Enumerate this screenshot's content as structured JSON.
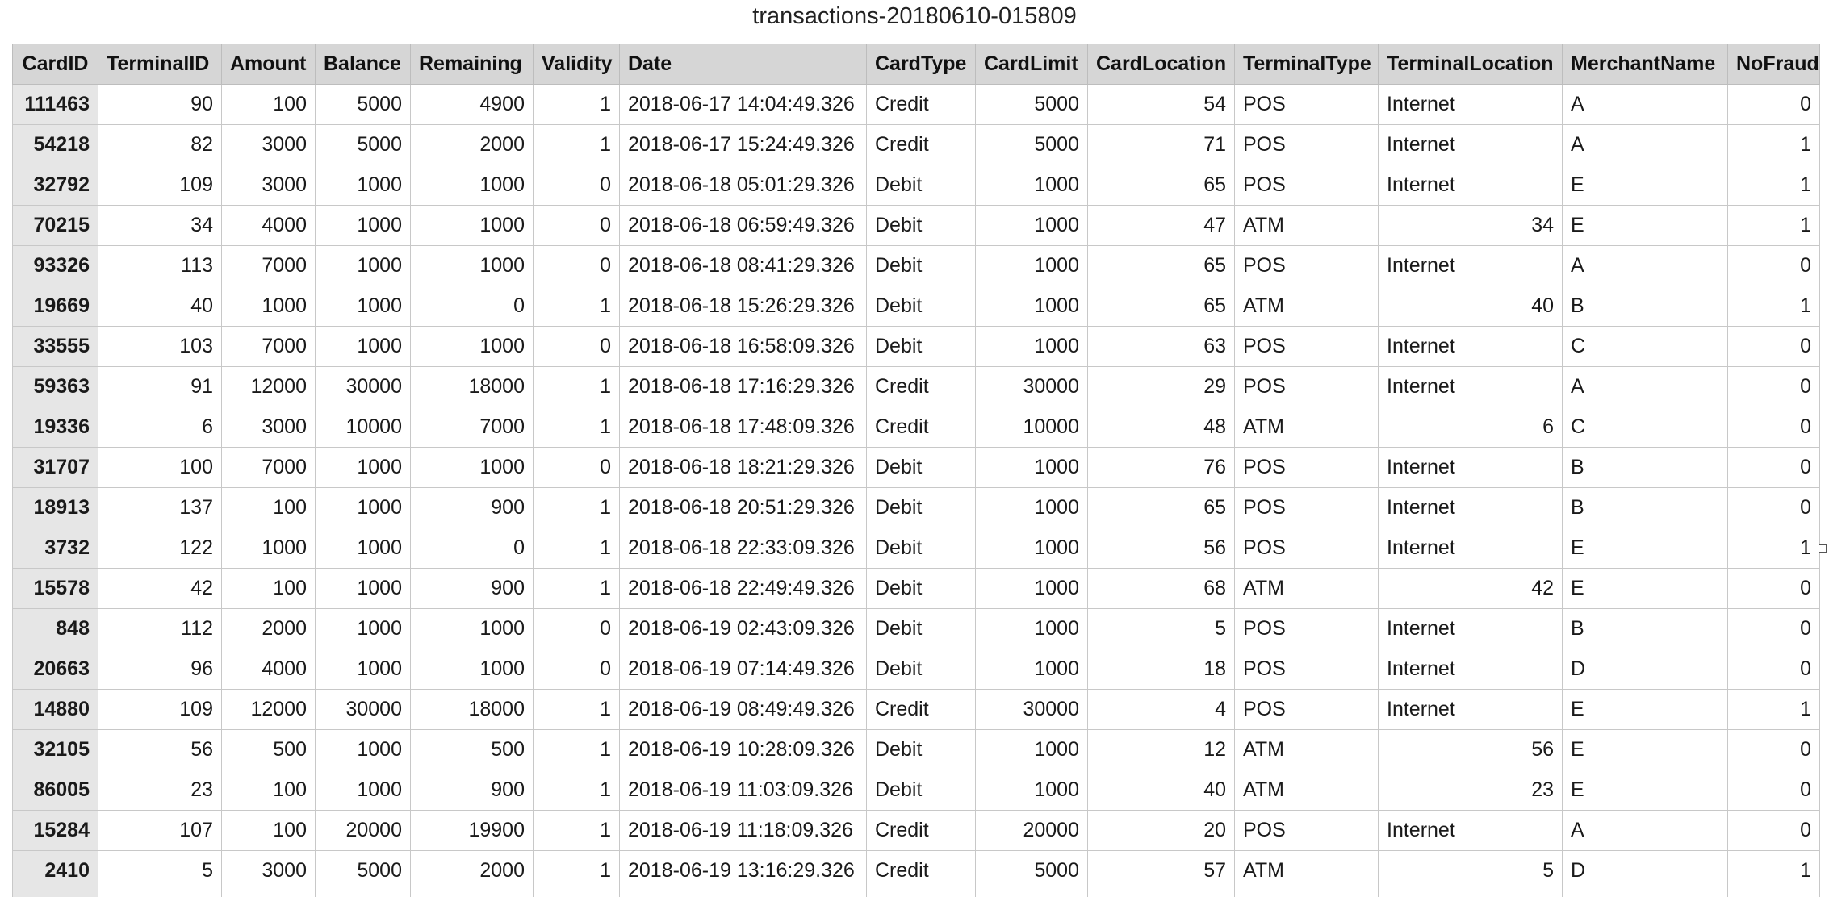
{
  "sheet": {
    "title": "transactions-20180610-015809"
  },
  "table": {
    "columns": [
      {
        "label": "CardID",
        "align": "num"
      },
      {
        "label": "TerminalID",
        "align": "num"
      },
      {
        "label": "Amount",
        "align": "num"
      },
      {
        "label": "Balance",
        "align": "num"
      },
      {
        "label": "Remaining",
        "align": "num"
      },
      {
        "label": "Validity",
        "align": "num"
      },
      {
        "label": "Date",
        "align": "txt"
      },
      {
        "label": "CardType",
        "align": "txt"
      },
      {
        "label": "CardLimit",
        "align": "num"
      },
      {
        "label": "CardLocation",
        "align": "num"
      },
      {
        "label": "TerminalType",
        "align": "txt"
      },
      {
        "label": "TerminalLocation",
        "align": "mixed"
      },
      {
        "label": "MerchantName",
        "align": "txt"
      },
      {
        "label": "NoFraud",
        "align": "num"
      }
    ],
    "rows": [
      [
        "111463",
        "90",
        "100",
        "5000",
        "4900",
        "1",
        "2018-06-17 14:04:49.326",
        "Credit",
        "5000",
        "54",
        "POS",
        "Internet",
        "A",
        "0"
      ],
      [
        "54218",
        "82",
        "3000",
        "5000",
        "2000",
        "1",
        "2018-06-17 15:24:49.326",
        "Credit",
        "5000",
        "71",
        "POS",
        "Internet",
        "A",
        "1"
      ],
      [
        "32792",
        "109",
        "3000",
        "1000",
        "1000",
        "0",
        "2018-06-18 05:01:29.326",
        "Debit",
        "1000",
        "65",
        "POS",
        "Internet",
        "E",
        "1"
      ],
      [
        "70215",
        "34",
        "4000",
        "1000",
        "1000",
        "0",
        "2018-06-18 06:59:49.326",
        "Debit",
        "1000",
        "47",
        "ATM",
        "34",
        "E",
        "1"
      ],
      [
        "93326",
        "113",
        "7000",
        "1000",
        "1000",
        "0",
        "2018-06-18 08:41:29.326",
        "Debit",
        "1000",
        "65",
        "POS",
        "Internet",
        "A",
        "0"
      ],
      [
        "19669",
        "40",
        "1000",
        "1000",
        "0",
        "1",
        "2018-06-18 15:26:29.326",
        "Debit",
        "1000",
        "65",
        "ATM",
        "40",
        "B",
        "1"
      ],
      [
        "33555",
        "103",
        "7000",
        "1000",
        "1000",
        "0",
        "2018-06-18 16:58:09.326",
        "Debit",
        "1000",
        "63",
        "POS",
        "Internet",
        "C",
        "0"
      ],
      [
        "59363",
        "91",
        "12000",
        "30000",
        "18000",
        "1",
        "2018-06-18 17:16:29.326",
        "Credit",
        "30000",
        "29",
        "POS",
        "Internet",
        "A",
        "0"
      ],
      [
        "19336",
        "6",
        "3000",
        "10000",
        "7000",
        "1",
        "2018-06-18 17:48:09.326",
        "Credit",
        "10000",
        "48",
        "ATM",
        "6",
        "C",
        "0"
      ],
      [
        "31707",
        "100",
        "7000",
        "1000",
        "1000",
        "0",
        "2018-06-18 18:21:29.326",
        "Debit",
        "1000",
        "76",
        "POS",
        "Internet",
        "B",
        "0"
      ],
      [
        "18913",
        "137",
        "100",
        "1000",
        "900",
        "1",
        "2018-06-18 20:51:29.326",
        "Debit",
        "1000",
        "65",
        "POS",
        "Internet",
        "B",
        "0"
      ],
      [
        "3732",
        "122",
        "1000",
        "1000",
        "0",
        "1",
        "2018-06-18 22:33:09.326",
        "Debit",
        "1000",
        "56",
        "POS",
        "Internet",
        "E",
        "1"
      ],
      [
        "15578",
        "42",
        "100",
        "1000",
        "900",
        "1",
        "2018-06-18 22:49:49.326",
        "Debit",
        "1000",
        "68",
        "ATM",
        "42",
        "E",
        "0"
      ],
      [
        "848",
        "112",
        "2000",
        "1000",
        "1000",
        "0",
        "2018-06-19 02:43:09.326",
        "Debit",
        "1000",
        "5",
        "POS",
        "Internet",
        "B",
        "0"
      ],
      [
        "20663",
        "96",
        "4000",
        "1000",
        "1000",
        "0",
        "2018-06-19 07:14:49.326",
        "Debit",
        "1000",
        "18",
        "POS",
        "Internet",
        "D",
        "0"
      ],
      [
        "14880",
        "109",
        "12000",
        "30000",
        "18000",
        "1",
        "2018-06-19 08:49:49.326",
        "Credit",
        "30000",
        "4",
        "POS",
        "Internet",
        "E",
        "1"
      ],
      [
        "32105",
        "56",
        "500",
        "1000",
        "500",
        "1",
        "2018-06-19 10:28:09.326",
        "Debit",
        "1000",
        "12",
        "ATM",
        "56",
        "E",
        "0"
      ],
      [
        "86005",
        "23",
        "100",
        "1000",
        "900",
        "1",
        "2018-06-19 11:03:09.326",
        "Debit",
        "1000",
        "40",
        "ATM",
        "23",
        "E",
        "0"
      ],
      [
        "15284",
        "107",
        "100",
        "20000",
        "19900",
        "1",
        "2018-06-19 11:18:09.326",
        "Credit",
        "20000",
        "20",
        "POS",
        "Internet",
        "A",
        "0"
      ],
      [
        "2410",
        "5",
        "3000",
        "5000",
        "2000",
        "1",
        "2018-06-19 13:16:29.326",
        "Credit",
        "5000",
        "57",
        "ATM",
        "5",
        "D",
        "1"
      ],
      [
        "",
        "",
        "",
        "",
        "",
        "",
        "",
        "",
        "",
        "",
        "",
        "",
        "",
        ""
      ]
    ]
  }
}
